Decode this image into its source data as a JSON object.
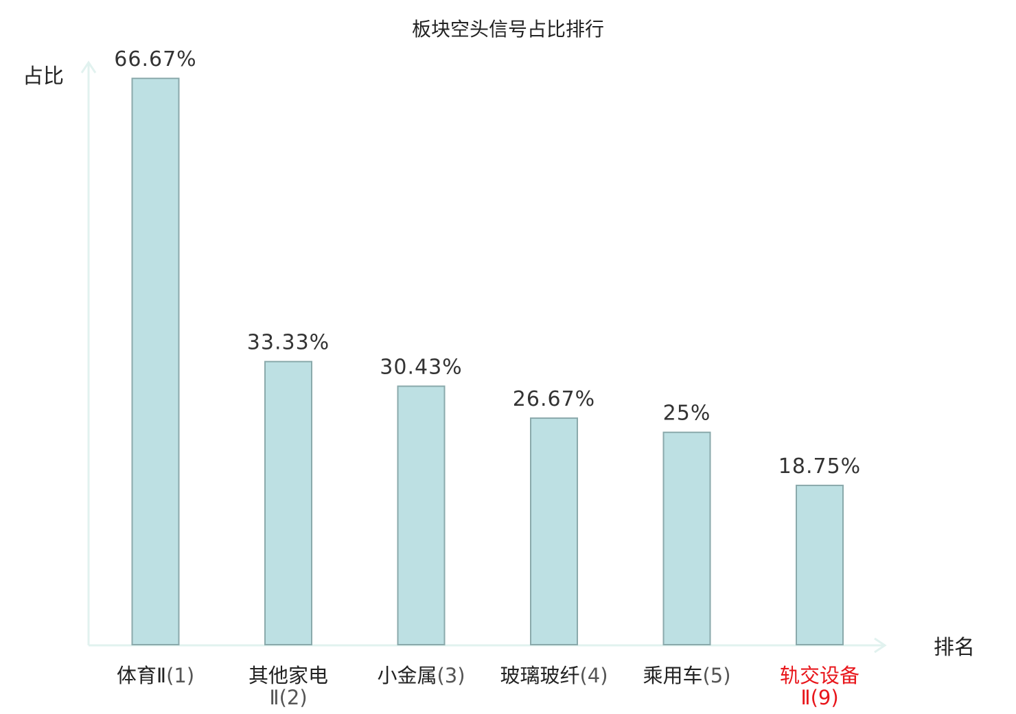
{
  "chart_data": {
    "type": "bar",
    "title": "板块空头信号占比排行",
    "ylabel": "占比",
    "xlabel": "排名",
    "ylim": [
      0,
      70
    ],
    "grid": false,
    "categories": [
      {
        "name": "体育Ⅱ",
        "rank": "(1)",
        "highlight": false
      },
      {
        "name": "其他家电",
        "rank": "Ⅱ(2)",
        "highlight": false
      },
      {
        "name": "小金属",
        "rank": "(3)",
        "highlight": false
      },
      {
        "name": "玻璃玻纤",
        "rank": "(4)",
        "highlight": false
      },
      {
        "name": "乘用车",
        "rank": "(5)",
        "highlight": false
      },
      {
        "name": "轨交设备",
        "rank": "Ⅱ(9)",
        "highlight": true
      }
    ],
    "values": [
      66.67,
      33.33,
      30.43,
      26.67,
      25,
      18.75
    ],
    "value_labels": [
      "66.67%",
      "33.33%",
      "30.43%",
      "26.67%",
      "25%",
      "18.75%"
    ],
    "colors": {
      "bar_fill": "#bde0e3",
      "bar_stroke": "#8aa9ab",
      "axis": "#e1f2ef",
      "highlight_text": "#e8161b",
      "normal_text": "#222222",
      "rank_text": "#555555"
    }
  }
}
